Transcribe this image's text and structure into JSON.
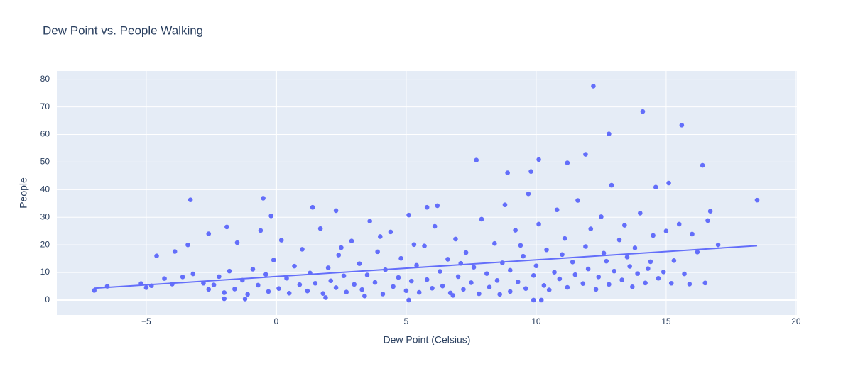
{
  "chart_data": {
    "type": "scatter",
    "title": "Dew Point vs. People Walking",
    "xlabel": "Dew Point (Celsius)",
    "ylabel": "People",
    "xlim": [
      -8.44,
      20.03
    ],
    "ylim": [
      -5.4,
      83
    ],
    "xticks": [
      {
        "value": -5,
        "label": "−5"
      },
      0,
      5,
      10,
      15,
      20
    ],
    "yticks": [
      0,
      10,
      20,
      30,
      40,
      50,
      60,
      70,
      80
    ],
    "grid": true,
    "series": [
      {
        "color": "#636efa",
        "x": [
          12.2,
          14.1,
          12.8,
          15.6,
          16.4,
          11.9,
          10.1,
          7.7,
          18.5,
          -3.3,
          -0.5,
          1.4,
          9.8,
          8.9,
          11.2,
          15.1,
          14.6,
          16.7,
          17,
          16.5,
          -7,
          -5.2,
          -4.6,
          -3.9,
          -3.4,
          -2.6,
          -1.9,
          -0.2,
          2.3,
          6.2,
          5.8,
          9.9,
          10.2,
          5.1,
          -1.2,
          -2,
          -6.5,
          -5,
          -4.8,
          -4.3,
          -4,
          -3.6,
          -3.2,
          -2.8,
          -2.6,
          -2.4,
          -2.2,
          -2,
          -1.8,
          -1.6,
          -1.5,
          -1.3,
          -1.1,
          -0.9,
          -0.7,
          -0.6,
          -0.4,
          -0.3,
          -0.1,
          0.1,
          0.2,
          0.4,
          0.5,
          0.7,
          0.9,
          1,
          1.2,
          1.3,
          1.5,
          1.7,
          1.8,
          2,
          2.1,
          2.3,
          2.4,
          2.6,
          2.7,
          2.9,
          3,
          3.2,
          3.3,
          3.5,
          3.6,
          3.8,
          3.9,
          4.1,
          4.2,
          4.4,
          4.5,
          4.7,
          4.8,
          5,
          5.1,
          5.2,
          5.4,
          5.5,
          5.7,
          5.8,
          6,
          6.1,
          6.3,
          6.4,
          6.6,
          6.7,
          6.9,
          7,
          7.2,
          7.3,
          7.5,
          7.6,
          7.8,
          7.9,
          8.1,
          8.2,
          8.4,
          8.5,
          8.7,
          8.8,
          9,
          9,
          9.2,
          9.3,
          9.5,
          9.6,
          9.7,
          9.9,
          10,
          10.1,
          10.3,
          10.4,
          10.5,
          10.7,
          10.8,
          10.9,
          11.1,
          11.2,
          11.4,
          11.5,
          11.6,
          11.8,
          11.9,
          12,
          12.1,
          12.3,
          12.4,
          12.5,
          12.7,
          12.8,
          12.9,
          13,
          13.2,
          13.3,
          13.4,
          13.6,
          13.7,
          13.8,
          13.9,
          14,
          14.2,
          14.3,
          14.5,
          14.7,
          14.9,
          15,
          15.2,
          15.3,
          15.5,
          15.7,
          15.9,
          16,
          16.2,
          16.6,
          1.9,
          3.4,
          6.8,
          8.6,
          4,
          2.5,
          5.3,
          7.1,
          9.4,
          11,
          12.6,
          13.5,
          14.4
        ],
        "y": [
          77.5,
          68.3,
          60.2,
          63.4,
          48.8,
          52.8,
          50.9,
          50.7,
          36.2,
          36.3,
          36.9,
          33.6,
          46.6,
          46.1,
          49.7,
          42.4,
          40.9,
          32.2,
          20,
          6.2,
          3.5,
          6,
          16,
          17.6,
          20,
          24,
          26.5,
          30.5,
          32.4,
          34.2,
          33.6,
          0,
          0,
          0,
          0.4,
          0.5,
          5,
          4.5,
          5.2,
          7.8,
          5.8,
          8.4,
          9.5,
          6.1,
          3.9,
          5.5,
          8.5,
          2.7,
          10.5,
          4,
          20.8,
          7.2,
          2.1,
          11.2,
          5.4,
          25.2,
          9.3,
          3.1,
          14.5,
          4.2,
          21.7,
          7.9,
          2.5,
          12.3,
          5.6,
          18.4,
          3.3,
          9.8,
          6.1,
          25.9,
          2.4,
          11.7,
          7,
          4.5,
          16.3,
          8.8,
          2.9,
          21.4,
          5.7,
          13.2,
          3.8,
          9.1,
          28.6,
          6.4,
          17.5,
          2.2,
          11,
          24.7,
          4.9,
          8.2,
          15.1,
          3.4,
          30.8,
          6.9,
          12.6,
          2.8,
          19.6,
          7.4,
          4.3,
          26.7,
          10.4,
          5.1,
          14.8,
          2.6,
          22.1,
          8.5,
          3.9,
          17.2,
          6.3,
          11.9,
          2.3,
          29.3,
          9.6,
          4.7,
          20.5,
          7.1,
          13.5,
          34.5,
          3.1,
          10.8,
          25.3,
          6.6,
          15.9,
          4.2,
          38.5,
          8.9,
          12.4,
          27.5,
          5.3,
          18.2,
          3.7,
          10.1,
          32.7,
          7.7,
          22.3,
          4.6,
          13.8,
          9.2,
          36.1,
          6,
          19.4,
          11.3,
          25.8,
          3.9,
          8.4,
          30.2,
          14.1,
          5.7,
          41.6,
          10.5,
          21.8,
          7.3,
          27.1,
          12.2,
          4.8,
          18.9,
          9.6,
          31.5,
          6.2,
          11.4,
          23.4,
          7.9,
          10.2,
          25,
          6.1,
          14.3,
          27.5,
          9.5,
          5.8,
          23.9,
          17.4,
          28.8,
          0.9,
          1.5,
          1.7,
          2.1,
          23,
          19,
          20.1,
          13.3,
          19.8,
          16.5,
          17,
          15.6,
          13.9
        ]
      }
    ],
    "trendline": {
      "color": "#636efa",
      "x": [
        -7,
        18.5
      ],
      "y": [
        4.3,
        19.7
      ]
    }
  }
}
